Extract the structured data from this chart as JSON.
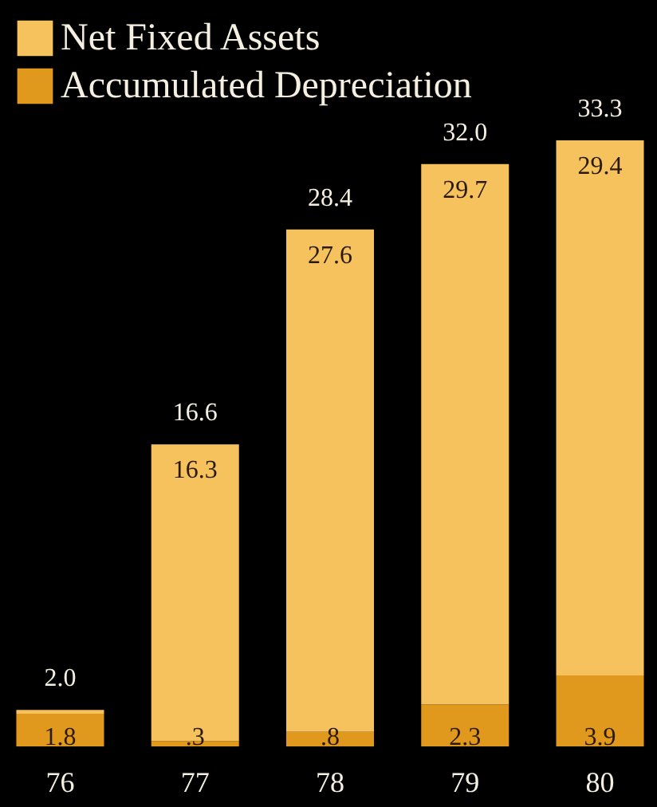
{
  "chart_data": {
    "type": "bar",
    "stacked": true,
    "categories": [
      "76",
      "77",
      "78",
      "79",
      "80"
    ],
    "series": [
      {
        "name": "Accumulated Depreciation",
        "color": "#e0991c",
        "values": [
          1.8,
          0.3,
          0.8,
          2.3,
          3.9
        ],
        "value_labels": [
          "1.8",
          ".3",
          ".8",
          "2.3",
          "3.9"
        ]
      },
      {
        "name": "Net Fixed Assets",
        "color": "#f6c25e",
        "values": [
          0.2,
          16.3,
          27.6,
          29.7,
          29.4
        ],
        "value_labels": [
          null,
          "16.3",
          "27.6",
          "29.7",
          "29.4"
        ]
      }
    ],
    "totals": [
      "2.0",
      "16.6",
      "28.4",
      "32.0",
      "33.3"
    ],
    "legend": "top",
    "grid": false
  }
}
